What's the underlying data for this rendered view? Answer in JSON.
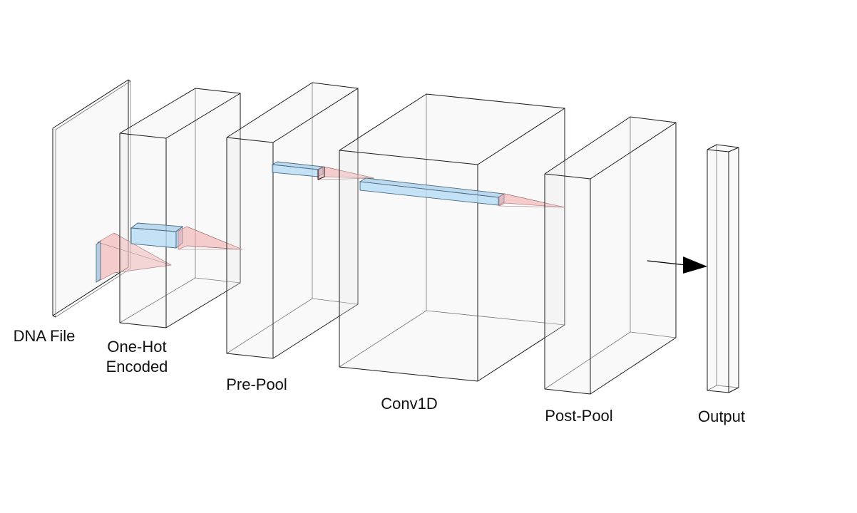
{
  "layers": [
    {
      "id": "dna-file",
      "label": "DNA File"
    },
    {
      "id": "one-hot-encoded",
      "label": "One-Hot\nEncoded"
    },
    {
      "id": "pre-pool",
      "label": "Pre-Pool"
    },
    {
      "id": "conv1d",
      "label": "Conv1D"
    },
    {
      "id": "post-pool",
      "label": "Post-Pool"
    },
    {
      "id": "output",
      "label": "Output"
    }
  ],
  "colors": {
    "box_edge": "#1a1a1a",
    "kernel": "#b7dcf5",
    "receptive_field": "#f0a8a8",
    "arrow": "#000000"
  }
}
